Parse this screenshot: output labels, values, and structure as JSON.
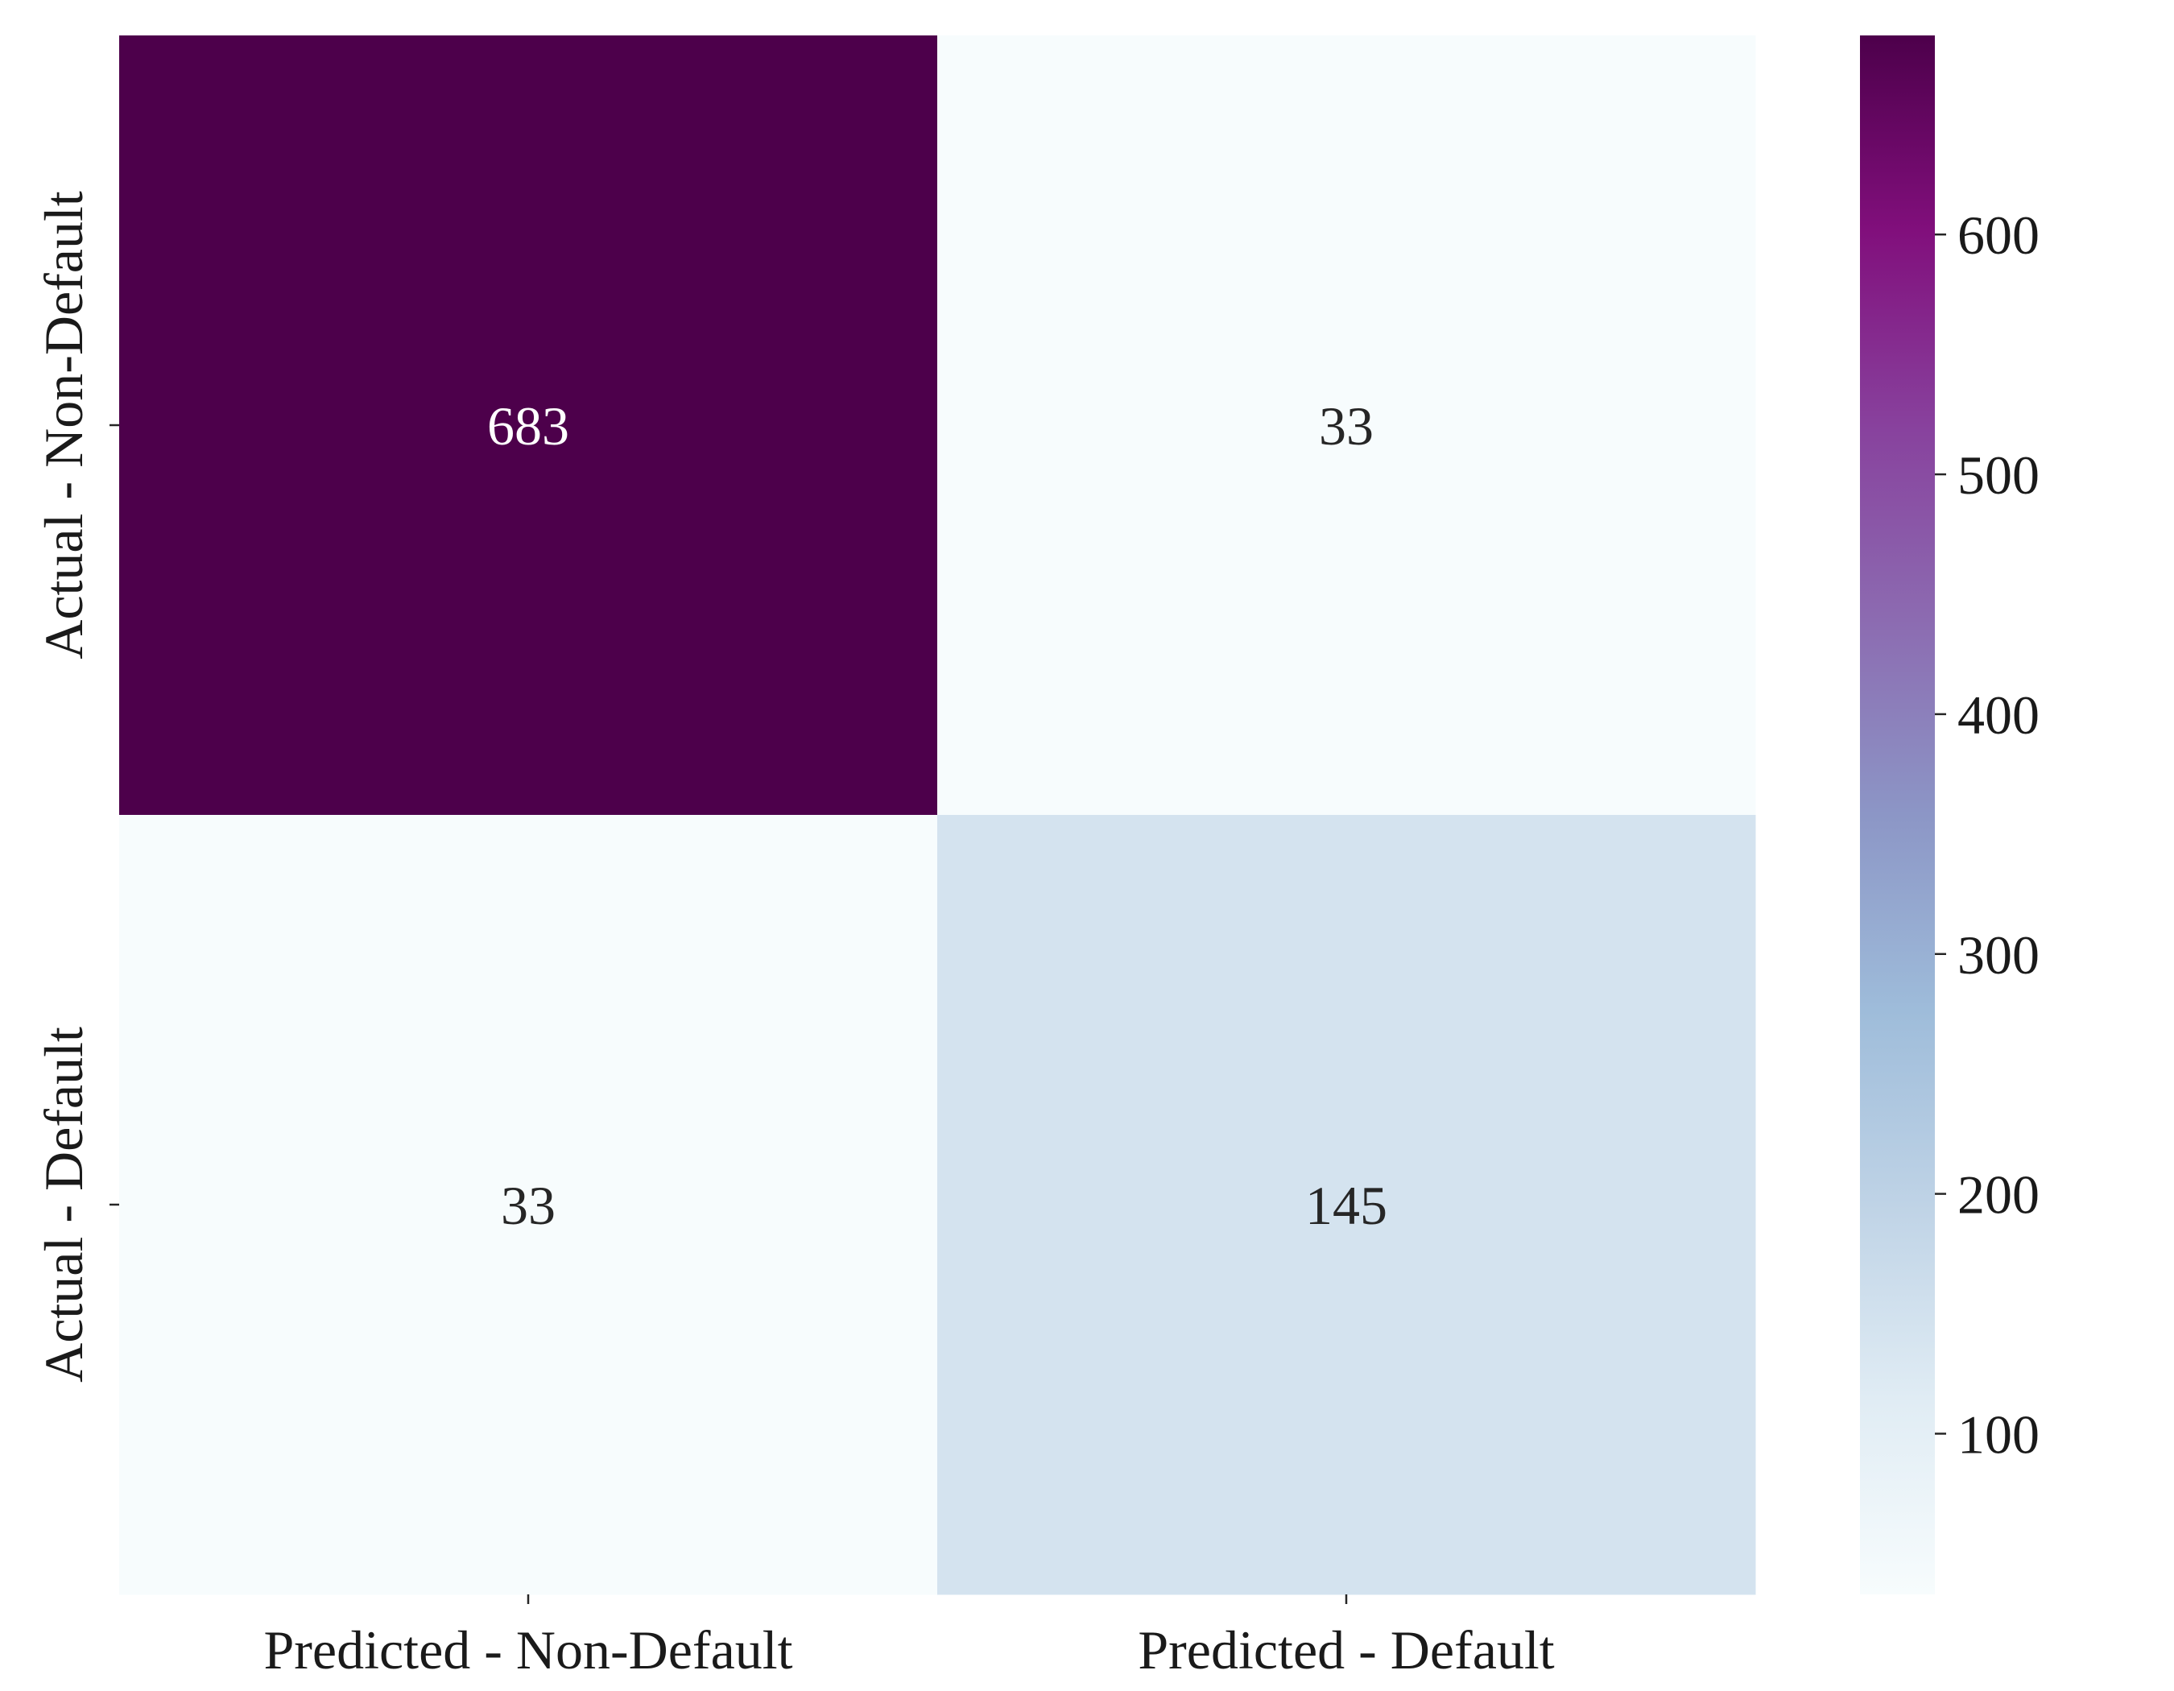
{
  "chart_data": {
    "type": "heatmap",
    "title": "",
    "xlabel": "",
    "ylabel": "",
    "x_categories": [
      "Predicted - Non-Default",
      "Predicted - Default"
    ],
    "y_categories": [
      "Actual - Non-Default",
      "Actual - Default"
    ],
    "values": [
      [
        683,
        33
      ],
      [
        33,
        145
      ]
    ],
    "cell_labels": [
      [
        "683",
        "33"
      ],
      [
        "33",
        "145"
      ]
    ],
    "colorscale": "BuPu",
    "color_range": [
      33,
      683
    ],
    "colorbar": {
      "ticks": [
        100,
        200,
        300,
        400,
        500,
        600
      ],
      "tick_labels": [
        "100",
        "200",
        "300",
        "400",
        "500",
        "600"
      ]
    },
    "colorbar_stops": [
      {
        "t": 0.0,
        "color": "#f7fcfd"
      },
      {
        "t": 0.125,
        "color": "#e0ecf4"
      },
      {
        "t": 0.25,
        "color": "#bfd3e6"
      },
      {
        "t": 0.375,
        "color": "#9ebcda"
      },
      {
        "t": 0.5,
        "color": "#8c96c6"
      },
      {
        "t": 0.625,
        "color": "#8c6bb1"
      },
      {
        "t": 0.75,
        "color": "#88419d"
      },
      {
        "t": 0.875,
        "color": "#810f7c"
      },
      {
        "t": 1.0,
        "color": "#4d004b"
      }
    ],
    "text_color_dark": "#262626",
    "text_color_light": "#ffffff",
    "grid": false,
    "legend": "right"
  }
}
